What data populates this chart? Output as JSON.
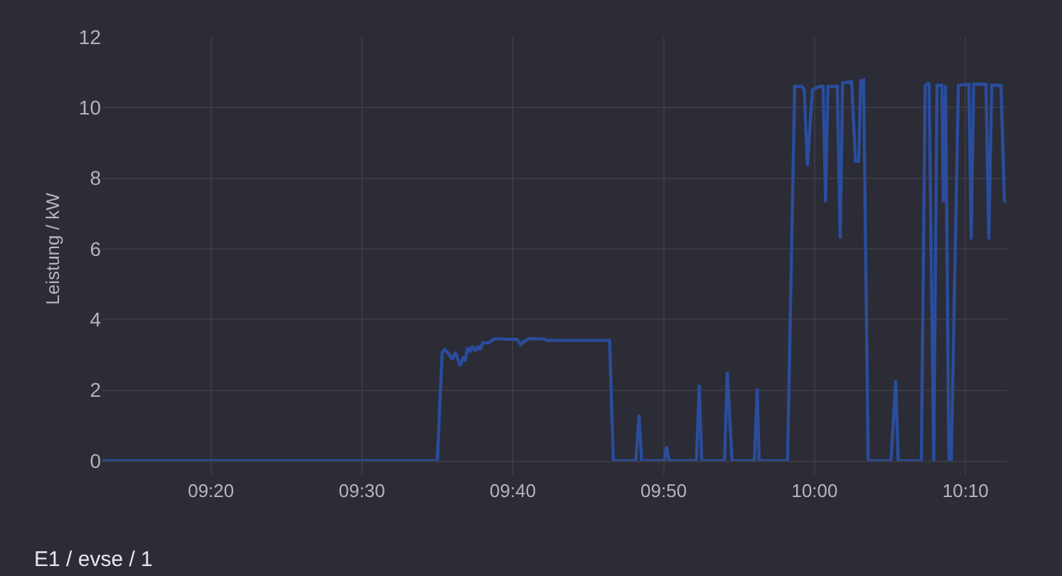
{
  "chart_data": {
    "type": "line",
    "ylabel": "Leistung / kW",
    "annotations": [
      "E1 / evse / 1"
    ],
    "x": [
      9.2134,
      9.5833,
      9.5887,
      9.5912,
      9.5954,
      9.5997,
      9.6033,
      9.6085,
      9.6123,
      9.6138,
      9.617,
      9.619,
      9.6222,
      9.6253,
      9.6284,
      9.6305,
      9.6336,
      9.6399,
      9.6453,
      9.6504,
      9.6599,
      9.6714,
      9.6756,
      9.6792,
      9.6846,
      9.7003,
      9.7044,
      9.7736,
      9.7778,
      9.8025,
      9.8061,
      9.8088,
      9.834,
      9.8365,
      9.8391,
      9.8695,
      9.8726,
      9.8753,
      9.9005,
      9.9036,
      9.9088,
      9.9335,
      9.9366,
      9.9387,
      9.9701,
      9.978,
      9.9859,
      9.9885,
      9.9921,
      9.9975,
      10.0053,
      10.0094,
      10.0121,
      10.0147,
      10.0251,
      10.0283,
      10.0309,
      10.0409,
      10.0451,
      10.0487,
      10.0509,
      10.0541,
      10.0592,
      10.0844,
      10.0896,
      10.0923,
      10.1179,
      10.1221,
      10.1264,
      10.1316,
      10.1352,
      10.1405,
      10.1421,
      10.1446,
      10.1484,
      10.1509,
      10.1588,
      10.1704,
      10.1729,
      10.1756,
      10.1893,
      10.1924,
      10.1956,
      10.2059,
      10.2097
    ],
    "series": [
      {
        "color": "#2a4d9c",
        "values": [
          0,
          0,
          3.07,
          3.15,
          3.05,
          2.87,
          3.07,
          2.69,
          2.95,
          2.82,
          3.21,
          3.07,
          3.25,
          3.1,
          3.25,
          3.14,
          3.34,
          3.34,
          3.44,
          3.46,
          3.44,
          3.44,
          3.29,
          3.38,
          3.46,
          3.45,
          3.41,
          3.41,
          0,
          0,
          1.3,
          0,
          0,
          0.4,
          0,
          0,
          2.15,
          0,
          0,
          2.52,
          0,
          0,
          2.04,
          0,
          0,
          10.6,
          10.6,
          10.52,
          8.35,
          10.5,
          10.6,
          10.6,
          7.32,
          10.6,
          10.6,
          6.3,
          10.7,
          10.73,
          8.48,
          8.48,
          10.75,
          10.78,
          0,
          0,
          2.28,
          0,
          0,
          10.63,
          10.7,
          0,
          10.63,
          10.63,
          7.32,
          10.63,
          0,
          0,
          10.63,
          10.66,
          6.27,
          10.66,
          10.66,
          6.27,
          10.63,
          10.63,
          7.32
        ]
      }
    ],
    "xlim": [
      9.2134,
      10.212
    ],
    "ylim": [
      0,
      12
    ],
    "xticks": [
      {
        "value": 9.3333,
        "label": "09:20"
      },
      {
        "value": 9.5,
        "label": "09:30"
      },
      {
        "value": 9.6667,
        "label": "09:40"
      },
      {
        "value": 9.8333,
        "label": "09:50"
      },
      {
        "value": 10,
        "label": "10:00"
      },
      {
        "value": 10.1667,
        "label": "10:10"
      }
    ],
    "yticks": [
      0,
      2,
      4,
      6,
      8,
      10,
      12
    ],
    "grid": true,
    "marker": "none",
    "line_style": "solid"
  }
}
